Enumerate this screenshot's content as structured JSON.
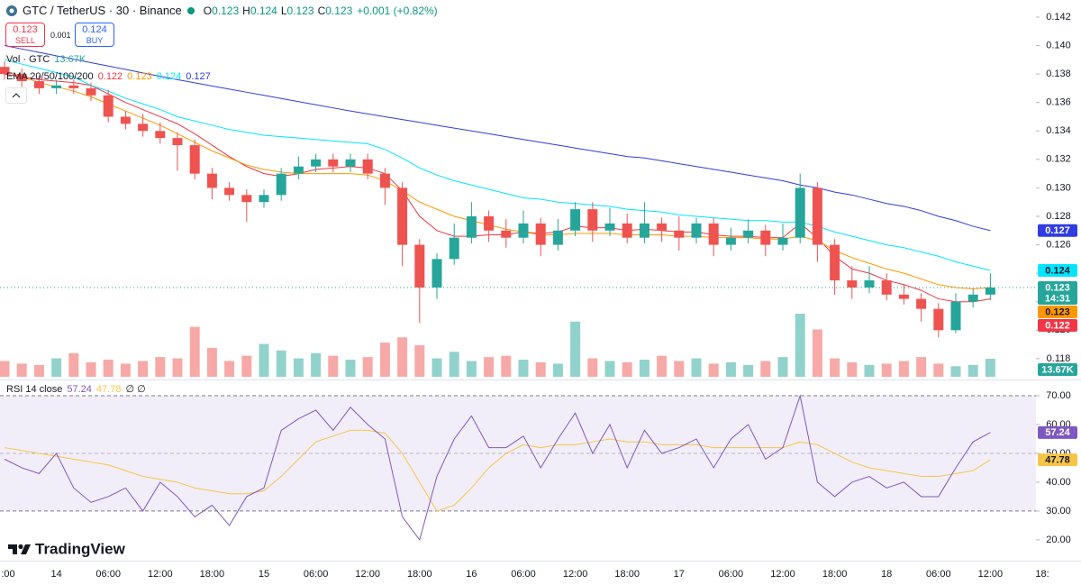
{
  "header": {
    "symbol": "GTC / TetherUS · 30 · Binance",
    "ohlc": [
      {
        "key": "O",
        "value": "0.123"
      },
      {
        "key": "H",
        "value": "0.124"
      },
      {
        "key": "L",
        "value": "0.123"
      },
      {
        "key": "C",
        "value": "0.123"
      }
    ],
    "change": "+0.001 (+0.82%)",
    "sell": {
      "price": "0.123",
      "label": "SELL"
    },
    "spread": "0.001",
    "buy": {
      "price": "0.124",
      "label": "BUY"
    }
  },
  "logo": "TradingView",
  "chart_data": [
    {
      "type": "candlestick",
      "colors": {
        "up": "#26a69a",
        "down": "#ef5350"
      },
      "ylim": [
        0.1166,
        0.1432
      ],
      "yticks": [
        0.118,
        {
          "value": 0.12,
          "label": "0.120"
        },
        0.122,
        0.124,
        0.126,
        0.128,
        {
          "value": 0.13,
          "label": "0.130"
        },
        0.132,
        0.134,
        0.136,
        0.138,
        {
          "value": 0.14,
          "label": "0.140"
        },
        0.142
      ],
      "time_labels": [
        ":00",
        "14",
        "06:00",
        "12:00",
        "18:00",
        "15",
        "06:00",
        "12:00",
        "18:00",
        "16",
        "06:00",
        "12:00",
        "18:00",
        "17",
        "06:00",
        "12:00",
        "18:00",
        "18",
        "06:00",
        "12:00",
        "18:"
      ],
      "countdown": "14:31",
      "ohlc": [
        [
          0.1385,
          0.1389,
          0.1376,
          0.138
        ],
        [
          0.138,
          0.1384,
          0.1371,
          0.1375
        ],
        [
          0.1375,
          0.1379,
          0.1366,
          0.137
        ],
        [
          0.137,
          0.1376,
          0.1366,
          0.1372
        ],
        [
          0.1372,
          0.1376,
          0.1366,
          0.137
        ],
        [
          0.137,
          0.1374,
          0.1361,
          0.1365
        ],
        [
          0.1365,
          0.1369,
          0.1346,
          0.135
        ],
        [
          0.135,
          0.1354,
          0.1341,
          0.1345
        ],
        [
          0.1345,
          0.1352,
          0.1336,
          0.134
        ],
        [
          0.134,
          0.1346,
          0.1331,
          0.1335
        ],
        [
          0.1335,
          0.1339,
          0.1312,
          0.133
        ],
        [
          0.133,
          0.1334,
          0.1306,
          0.131
        ],
        [
          0.131,
          0.1314,
          0.1292,
          0.13
        ],
        [
          0.13,
          0.1304,
          0.1291,
          0.1295
        ],
        [
          0.1295,
          0.1299,
          0.1276,
          0.129
        ],
        [
          0.129,
          0.1299,
          0.1286,
          0.1295
        ],
        [
          0.1295,
          0.1314,
          0.1291,
          0.131
        ],
        [
          0.131,
          0.1322,
          0.1306,
          0.1315
        ],
        [
          0.1315,
          0.1324,
          0.1311,
          0.132
        ],
        [
          0.132,
          0.1324,
          0.1311,
          0.1315
        ],
        [
          0.1315,
          0.1324,
          0.1311,
          0.132
        ],
        [
          0.132,
          0.1324,
          0.1306,
          0.131
        ],
        [
          0.131,
          0.1314,
          0.1288,
          0.13
        ],
        [
          0.13,
          0.1304,
          0.1245,
          0.126
        ],
        [
          0.126,
          0.1264,
          0.1205,
          0.123
        ],
        [
          0.123,
          0.1254,
          0.1222,
          0.125
        ],
        [
          0.125,
          0.1275,
          0.1246,
          0.1265
        ],
        [
          0.1265,
          0.129,
          0.1261,
          0.128
        ],
        [
          0.128,
          0.1284,
          0.1262,
          0.127
        ],
        [
          0.127,
          0.1278,
          0.1258,
          0.1265
        ],
        [
          0.1265,
          0.1284,
          0.1261,
          0.1275
        ],
        [
          0.1275,
          0.1279,
          0.1252,
          0.126
        ],
        [
          0.126,
          0.1278,
          0.1256,
          0.127
        ],
        [
          0.127,
          0.129,
          0.1266,
          0.1285
        ],
        [
          0.1285,
          0.129,
          0.1262,
          0.127
        ],
        [
          0.127,
          0.1286,
          0.1266,
          0.1275
        ],
        [
          0.1275,
          0.1282,
          0.1261,
          0.1265
        ],
        [
          0.1265,
          0.129,
          0.1261,
          0.1275
        ],
        [
          0.1275,
          0.1279,
          0.1262,
          0.127
        ],
        [
          0.127,
          0.128,
          0.1256,
          0.1265
        ],
        [
          0.1265,
          0.1279,
          0.1261,
          0.1275
        ],
        [
          0.1275,
          0.1279,
          0.1252,
          0.126
        ],
        [
          0.126,
          0.1272,
          0.1256,
          0.1265
        ],
        [
          0.1265,
          0.1278,
          0.1261,
          0.127
        ],
        [
          0.127,
          0.1274,
          0.1252,
          0.126
        ],
        [
          0.126,
          0.1275,
          0.1256,
          0.1265
        ],
        [
          0.1265,
          0.131,
          0.1261,
          0.13
        ],
        [
          0.13,
          0.1304,
          0.1248,
          0.126
        ],
        [
          0.126,
          0.1264,
          0.1225,
          0.1235
        ],
        [
          0.1235,
          0.1245,
          0.1222,
          0.123
        ],
        [
          0.123,
          0.1245,
          0.1226,
          0.1235
        ],
        [
          0.1235,
          0.124,
          0.1221,
          0.1225
        ],
        [
          0.1225,
          0.1232,
          0.1218,
          0.1222
        ],
        [
          0.1222,
          0.1226,
          0.1206,
          0.1215
        ],
        [
          0.1215,
          0.1219,
          0.1195,
          0.12
        ],
        [
          0.12,
          0.1226,
          0.1198,
          0.122
        ],
        [
          0.122,
          0.1229,
          0.1216,
          0.1225
        ],
        [
          0.1225,
          0.124,
          0.1221,
          0.123
        ]
      ],
      "volume": {
        "name": "Vol · GTC",
        "last_label": "13.67K",
        "values": [
          12,
          10,
          9,
          14,
          18,
          11,
          13,
          10,
          12,
          15,
          14,
          38,
          22,
          12,
          16,
          25,
          20,
          14,
          18,
          16,
          13,
          15,
          26,
          30,
          24,
          14,
          19,
          12,
          15,
          16,
          13,
          11,
          10,
          42,
          14,
          12,
          11,
          13,
          16,
          12,
          14,
          10,
          11,
          9,
          12,
          15,
          48,
          36,
          14,
          11,
          9,
          10,
          12,
          15,
          10,
          8,
          9,
          13.67
        ]
      },
      "ema": {
        "name": "EMA 20/50/100/200",
        "series": [
          {
            "color": "#f23645",
            "last_label": "0.122",
            "values": [
              0.138,
              0.1378,
              0.1376,
              0.1375,
              0.1374,
              0.1372,
              0.1366,
              0.136,
              0.1355,
              0.135,
              0.1345,
              0.1338,
              0.133,
              0.1322,
              0.1315,
              0.131,
              0.1308,
              0.131,
              0.1313,
              0.1314,
              0.1315,
              0.1314,
              0.131,
              0.1298,
              0.128,
              0.127,
              0.1266,
              0.1266,
              0.1267,
              0.1267,
              0.1269,
              0.1268,
              0.1269,
              0.1273,
              0.1272,
              0.1272,
              0.127,
              0.1271,
              0.127,
              0.1269,
              0.1269,
              0.1267,
              0.1266,
              0.1266,
              0.1265,
              0.1265,
              0.1275,
              0.1265,
              0.1252,
              0.1243,
              0.124,
              0.1235,
              0.1232,
              0.1228,
              0.1222,
              0.122,
              0.122,
              0.1222
            ]
          },
          {
            "color": "#ff9800",
            "last_label": "0.123",
            "values": [
              0.1382,
              0.1378,
              0.1374,
              0.1371,
              0.1368,
              0.1364,
              0.1359,
              0.1354,
              0.1349,
              0.1344,
              0.1338,
              0.1332,
              0.1326,
              0.1321,
              0.1316,
              0.1313,
              0.1311,
              0.131,
              0.131,
              0.131,
              0.131,
              0.1309,
              0.1305,
              0.1298,
              0.129,
              0.1285,
              0.128,
              0.1277,
              0.1274,
              0.1271,
              0.1269,
              0.1267,
              0.1267,
              0.1268,
              0.1268,
              0.1268,
              0.1267,
              0.1267,
              0.1267,
              0.1266,
              0.1266,
              0.1265,
              0.1265,
              0.1265,
              0.1264,
              0.1264,
              0.1266,
              0.1263,
              0.1256,
              0.1251,
              0.1247,
              0.1243,
              0.124,
              0.1236,
              0.1232,
              0.123,
              0.1229,
              0.123
            ]
          },
          {
            "color": "#00e5ff",
            "last_label": "0.124",
            "values": [
              0.139,
              0.1387,
              0.1384,
              0.1381,
              0.1378,
              0.1372,
              0.1368,
              0.1363,
              0.1359,
              0.1355,
              0.135,
              0.1347,
              0.1344,
              0.1341,
              0.1339,
              0.1337,
              0.1336,
              0.1335,
              0.1334,
              0.1333,
              0.1332,
              0.1331,
              0.1327,
              0.1321,
              0.1314,
              0.1309,
              0.1305,
              0.1302,
              0.1299,
              0.1296,
              0.1293,
              0.1292,
              0.129,
              0.1289,
              0.1288,
              0.1287,
              0.1285,
              0.1284,
              0.1283,
              0.1281,
              0.128,
              0.1279,
              0.1278,
              0.1277,
              0.1277,
              0.1276,
              0.1276,
              0.1273,
              0.1269,
              0.1266,
              0.1263,
              0.126,
              0.1258,
              0.1255,
              0.1252,
              0.1248,
              0.1245,
              0.1242
            ]
          },
          {
            "color": "#2f3ce0",
            "last_label": "0.127",
            "values": [
              0.14,
              0.13976,
              0.13952,
              0.13928,
              0.13904,
              0.1388,
              0.13856,
              0.13832,
              0.13808,
              0.13784,
              0.1376,
              0.13738,
              0.13716,
              0.13694,
              0.13672,
              0.1365,
              0.13628,
              0.13606,
              0.13584,
              0.13562,
              0.1354,
              0.1352,
              0.135,
              0.1348,
              0.1346,
              0.1344,
              0.1342,
              0.134,
              0.1338,
              0.1336,
              0.1334,
              0.1332,
              0.133,
              0.1328,
              0.1326,
              0.1324,
              0.1322,
              0.1321,
              0.1319,
              0.1317,
              0.1315,
              0.1313,
              0.1311,
              0.1309,
              0.1307,
              0.1305,
              0.1302,
              0.13,
              0.1297,
              0.1295,
              0.1292,
              0.1289,
              0.1287,
              0.1284,
              0.128,
              0.1277,
              0.1273,
              0.127
            ]
          }
        ]
      }
    },
    {
      "type": "line",
      "name": "RSI 14 close",
      "extra_label": "∅ ∅",
      "ylim": [
        13.4,
        74.7
      ],
      "yticks": [
        {
          "value": 20,
          "label": "20.00"
        },
        {
          "value": 30,
          "label": "30.00"
        },
        {
          "value": 40,
          "label": "40.00"
        },
        {
          "value": 50,
          "label": "50.00"
        },
        {
          "value": 60,
          "label": "60.00"
        },
        {
          "value": 70,
          "label": "70.00"
        }
      ],
      "band": [
        30,
        70
      ],
      "midline": 50,
      "series": [
        {
          "color": "#7e57c2",
          "last_label": "57.24",
          "values": [
            48,
            45,
            43,
            50,
            38,
            33,
            35,
            38,
            30,
            40,
            35,
            28,
            32,
            25,
            35,
            38,
            58,
            62,
            65,
            58,
            66,
            60,
            55,
            28,
            20,
            42,
            55,
            63,
            52,
            52,
            56,
            45,
            55,
            64,
            50,
            60,
            45,
            58,
            50,
            52,
            55,
            45,
            55,
            60,
            48,
            52,
            70,
            40,
            35,
            40,
            42,
            38,
            40,
            35,
            35,
            45,
            54,
            57.24
          ]
        },
        {
          "color": "#f7c548",
          "last_label": "47.78",
          "values": [
            52,
            51,
            50,
            49,
            48,
            47,
            46,
            44,
            42,
            41,
            40,
            38,
            37,
            36,
            36,
            37,
            42,
            48,
            54,
            56,
            58,
            58,
            57,
            50,
            40,
            30,
            32,
            38,
            45,
            50,
            53,
            52,
            53,
            53,
            54,
            55,
            54,
            54,
            53,
            53,
            53,
            52,
            52,
            52,
            52,
            52,
            54,
            53,
            50,
            47,
            45,
            44,
            43,
            42,
            42,
            43,
            44,
            47.78
          ]
        }
      ]
    }
  ]
}
